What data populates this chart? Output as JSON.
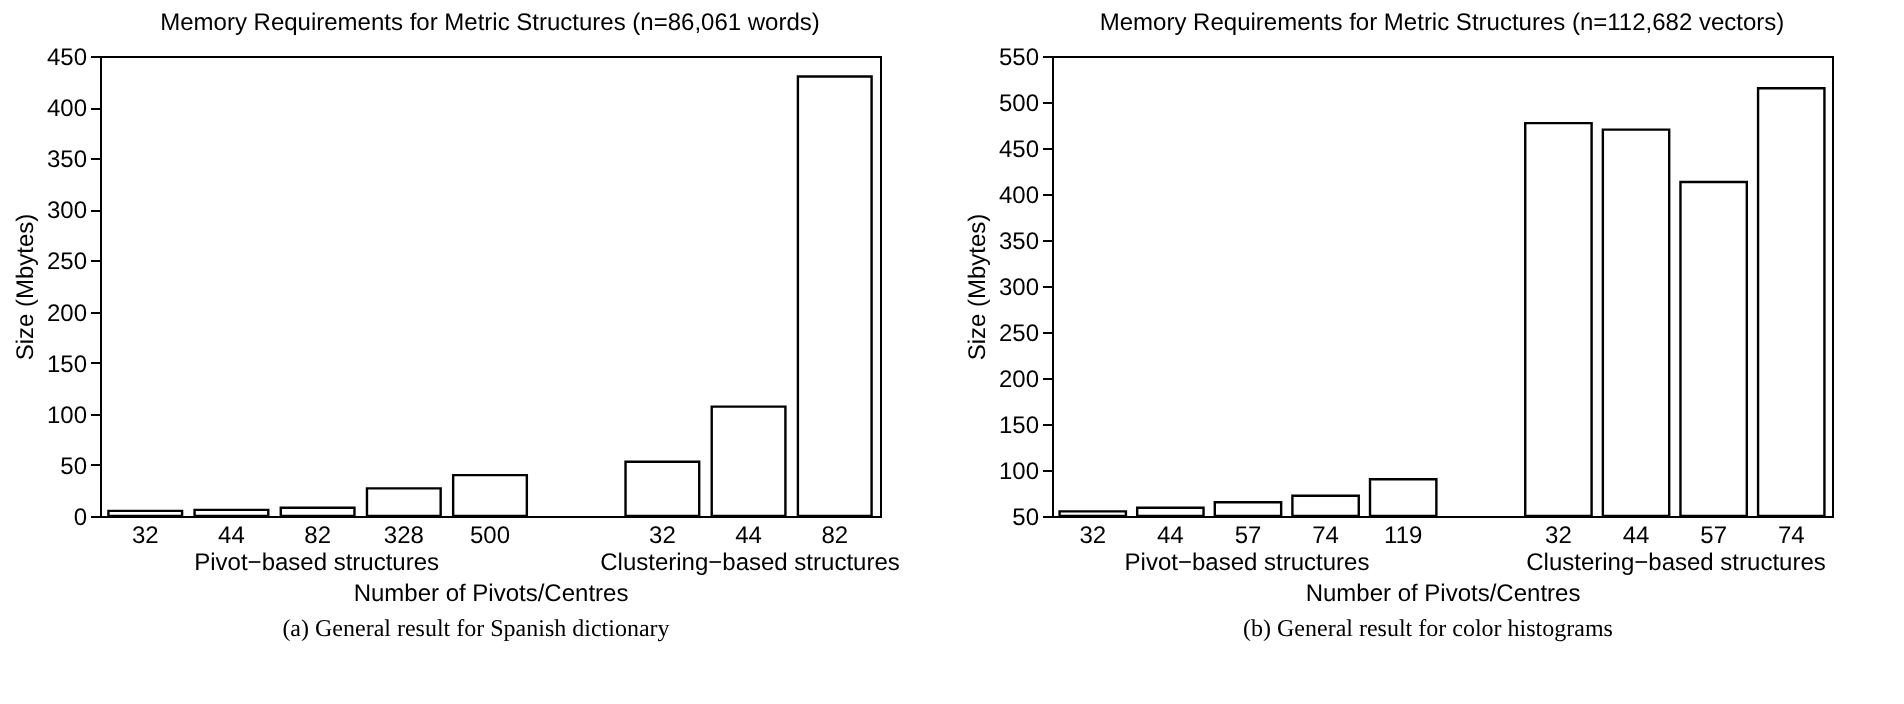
{
  "chart_data": [
    {
      "type": "bar",
      "title": "Memory Requirements for Metric Structures (n=86,061 words)",
      "xlabel": "Number of Pivots/Centres",
      "ylabel": "Size (Mbytes)",
      "categories": [
        "32",
        "44",
        "82",
        "328",
        "500",
        null,
        "32",
        "44",
        "82"
      ],
      "values": [
        5,
        6,
        8,
        27,
        40,
        null,
        53,
        107,
        430
      ],
      "color": "#ffffff",
      "ylim": [
        0,
        450
      ],
      "yticks": [
        0,
        50,
        100,
        150,
        200,
        250,
        300,
        350,
        400,
        450
      ],
      "grid": false,
      "annotations": [
        "Pivot−based structures",
        "Clustering−based structures",
        "(a) General result for Spanish dictionary"
      ]
    },
    {
      "type": "bar",
      "title": "Memory Requirements for Metric Structures (n=112,682 vectors)",
      "xlabel": "Number of Pivots/Centres",
      "ylabel": "Size (Mbytes)",
      "categories": [
        "32",
        "44",
        "57",
        "74",
        "119",
        null,
        "32",
        "44",
        "57",
        "74"
      ],
      "values": [
        55,
        59,
        65,
        72,
        90,
        null,
        477,
        470,
        413,
        515
      ],
      "color": "#ffffff",
      "ylim": [
        50,
        550
      ],
      "yticks": [
        50,
        100,
        150,
        200,
        250,
        300,
        350,
        400,
        450,
        500,
        550
      ],
      "grid": false,
      "annotations": [
        "Pivot−based structures",
        "Clustering−based structures",
        "(b) General result for color histograms"
      ]
    }
  ]
}
